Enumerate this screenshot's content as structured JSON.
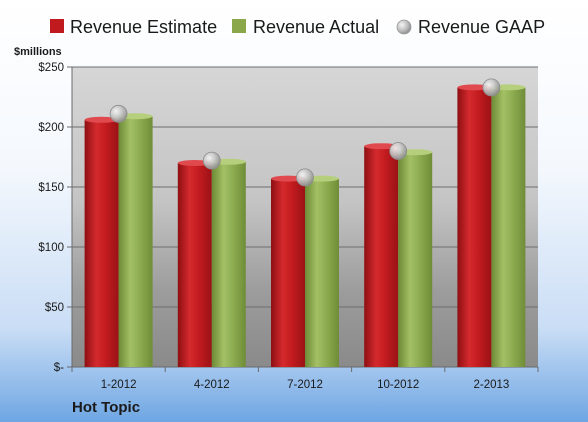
{
  "chart_data": {
    "type": "bar",
    "company": "Hot Topic",
    "ylabel": "$millions",
    "categories": [
      "1-2012",
      "4-2012",
      "7-2012",
      "10-2012",
      "2-2013"
    ],
    "ylim": [
      0,
      250
    ],
    "yticks": [
      0,
      50,
      100,
      150,
      200,
      250
    ],
    "ytick_labels": [
      "$-",
      "$50",
      "$100",
      "$150",
      "$200",
      "$250"
    ],
    "grid": true,
    "legend_position": "top",
    "series": [
      {
        "name": "Revenue Estimate",
        "type": "bar",
        "color": "#c0191e",
        "values": [
          206,
          170,
          157,
          184,
          233
        ]
      },
      {
        "name": "Revenue Actual",
        "type": "bar",
        "color": "#8aa84a",
        "values": [
          209,
          171,
          157,
          179,
          233
        ]
      },
      {
        "name": "Revenue GAAP",
        "type": "marker",
        "color": "#b8b8b8",
        "values": [
          211,
          172,
          158,
          180,
          233
        ]
      }
    ]
  }
}
